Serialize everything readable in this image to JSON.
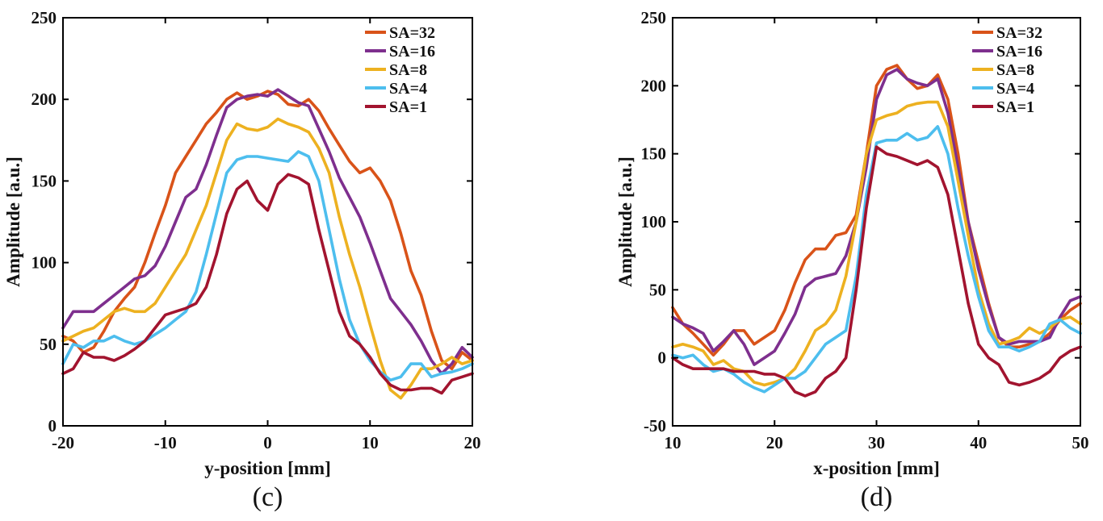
{
  "chart_data": [
    {
      "type": "line",
      "panel_label": "(c)",
      "xlabel": "y-position [mm]",
      "ylabel": "Amplitude [a.u.]",
      "xlim": [
        -20,
        20
      ],
      "ylim": [
        0,
        250
      ],
      "xticks": [
        -20,
        -10,
        0,
        10,
        20
      ],
      "yticks": [
        0,
        50,
        100,
        150,
        200,
        250
      ],
      "grid": false,
      "legend_position": "top-right",
      "series": [
        {
          "name": "SA=32",
          "color": "#D95319",
          "x": [
            -20,
            -19,
            -18,
            -17,
            -16,
            -15,
            -14,
            -13,
            -12,
            -11,
            -10,
            -9,
            -8,
            -7,
            -6,
            -5,
            -4,
            -3,
            -2,
            -1,
            0,
            1,
            2,
            3,
            4,
            5,
            6,
            7,
            8,
            9,
            10,
            11,
            12,
            13,
            14,
            15,
            16,
            17,
            18,
            19,
            20
          ],
          "y": [
            55,
            52,
            45,
            48,
            58,
            70,
            78,
            85,
            100,
            118,
            135,
            155,
            165,
            175,
            185,
            192,
            200,
            204,
            200,
            202,
            205,
            203,
            197,
            196,
            200,
            193,
            182,
            172,
            162,
            155,
            158,
            150,
            138,
            118,
            95,
            80,
            58,
            40,
            35,
            45,
            40
          ]
        },
        {
          "name": "SA=16",
          "color": "#7E2F8E",
          "x": [
            -20,
            -19,
            -18,
            -17,
            -16,
            -15,
            -14,
            -13,
            -12,
            -11,
            -10,
            -9,
            -8,
            -7,
            -6,
            -5,
            -4,
            -3,
            -2,
            -1,
            0,
            1,
            2,
            3,
            4,
            5,
            6,
            7,
            8,
            9,
            10,
            11,
            12,
            13,
            14,
            15,
            16,
            17,
            18,
            19,
            20
          ],
          "y": [
            60,
            70,
            70,
            70,
            75,
            80,
            85,
            90,
            92,
            98,
            110,
            125,
            140,
            145,
            160,
            178,
            195,
            200,
            202,
            203,
            202,
            206,
            202,
            198,
            196,
            182,
            168,
            152,
            140,
            128,
            112,
            95,
            78,
            70,
            62,
            52,
            40,
            32,
            38,
            48,
            42
          ]
        },
        {
          "name": "SA=8",
          "color": "#EDB120",
          "x": [
            -20,
            -19,
            -18,
            -17,
            -16,
            -15,
            -14,
            -13,
            -12,
            -11,
            -10,
            -9,
            -8,
            -7,
            -6,
            -5,
            -4,
            -3,
            -2,
            -1,
            0,
            1,
            2,
            3,
            4,
            5,
            6,
            7,
            8,
            9,
            10,
            11,
            12,
            13,
            14,
            15,
            16,
            17,
            18,
            19,
            20
          ],
          "y": [
            52,
            55,
            58,
            60,
            65,
            70,
            72,
            70,
            70,
            75,
            85,
            95,
            105,
            120,
            135,
            155,
            175,
            185,
            182,
            181,
            183,
            188,
            185,
            183,
            180,
            170,
            155,
            128,
            105,
            85,
            62,
            40,
            22,
            17,
            25,
            35,
            35,
            38,
            42,
            38,
            40
          ]
        },
        {
          "name": "SA=4",
          "color": "#4DBEEE",
          "x": [
            -20,
            -19,
            -18,
            -17,
            -16,
            -15,
            -14,
            -13,
            -12,
            -11,
            -10,
            -9,
            -8,
            -7,
            -6,
            -5,
            -4,
            -3,
            -2,
            -1,
            0,
            1,
            2,
            3,
            4,
            5,
            6,
            7,
            8,
            9,
            10,
            11,
            12,
            13,
            14,
            15,
            16,
            17,
            18,
            19,
            20
          ],
          "y": [
            38,
            50,
            48,
            52,
            52,
            55,
            52,
            50,
            52,
            56,
            60,
            65,
            70,
            82,
            105,
            130,
            155,
            163,
            165,
            165,
            164,
            163,
            162,
            168,
            165,
            150,
            120,
            90,
            65,
            50,
            40,
            33,
            28,
            30,
            38,
            38,
            30,
            32,
            33,
            35,
            38
          ]
        },
        {
          "name": "SA=1",
          "color": "#A2142F",
          "x": [
            -20,
            -19,
            -18,
            -17,
            -16,
            -15,
            -14,
            -13,
            -12,
            -11,
            -10,
            -9,
            -8,
            -7,
            -6,
            -5,
            -4,
            -3,
            -2,
            -1,
            0,
            1,
            2,
            3,
            4,
            5,
            6,
            7,
            8,
            9,
            10,
            11,
            12,
            13,
            14,
            15,
            16,
            17,
            18,
            19,
            20
          ],
          "y": [
            32,
            35,
            45,
            42,
            42,
            40,
            43,
            47,
            52,
            60,
            68,
            70,
            72,
            75,
            85,
            105,
            130,
            145,
            150,
            138,
            132,
            148,
            154,
            152,
            148,
            120,
            95,
            70,
            55,
            50,
            42,
            32,
            25,
            22,
            22,
            23,
            23,
            20,
            28,
            30,
            32
          ]
        }
      ]
    },
    {
      "type": "line",
      "panel_label": "(d)",
      "xlabel": "x-position [mm]",
      "ylabel": "Amplitude [a.u.]",
      "xlim": [
        10,
        50
      ],
      "ylim": [
        -50,
        250
      ],
      "xticks": [
        10,
        20,
        30,
        40,
        50
      ],
      "yticks": [
        -50,
        0,
        50,
        100,
        150,
        200,
        250
      ],
      "grid": false,
      "legend_position": "top-right",
      "series": [
        {
          "name": "SA=32",
          "color": "#D95319",
          "x": [
            10,
            11,
            12,
            13,
            14,
            15,
            16,
            17,
            18,
            19,
            20,
            21,
            22,
            23,
            24,
            25,
            26,
            27,
            28,
            29,
            30,
            31,
            32,
            33,
            34,
            35,
            36,
            37,
            38,
            39,
            40,
            41,
            42,
            43,
            44,
            45,
            46,
            47,
            48,
            49,
            50
          ],
          "y": [
            37,
            25,
            18,
            10,
            2,
            10,
            20,
            20,
            10,
            15,
            20,
            35,
            55,
            72,
            80,
            80,
            90,
            92,
            105,
            150,
            200,
            212,
            215,
            205,
            198,
            200,
            208,
            190,
            150,
            100,
            70,
            40,
            15,
            8,
            8,
            10,
            12,
            18,
            28,
            35,
            40
          ]
        },
        {
          "name": "SA=16",
          "color": "#7E2F8E",
          "x": [
            10,
            11,
            12,
            13,
            14,
            15,
            16,
            17,
            18,
            19,
            20,
            21,
            22,
            23,
            24,
            25,
            26,
            27,
            28,
            29,
            30,
            31,
            32,
            33,
            34,
            35,
            36,
            37,
            38,
            39,
            40,
            41,
            42,
            43,
            44,
            45,
            46,
            47,
            48,
            49,
            50
          ],
          "y": [
            30,
            25,
            22,
            18,
            5,
            12,
            20,
            10,
            -5,
            0,
            5,
            18,
            32,
            52,
            58,
            60,
            62,
            75,
            100,
            140,
            190,
            208,
            212,
            205,
            202,
            200,
            205,
            180,
            140,
            100,
            65,
            38,
            15,
            10,
            12,
            12,
            12,
            15,
            30,
            42,
            45
          ]
        },
        {
          "name": "SA=8",
          "color": "#EDB120",
          "x": [
            10,
            11,
            12,
            13,
            14,
            15,
            16,
            17,
            18,
            19,
            20,
            21,
            22,
            23,
            24,
            25,
            26,
            27,
            28,
            29,
            30,
            31,
            32,
            33,
            34,
            35,
            36,
            37,
            38,
            39,
            40,
            41,
            42,
            43,
            44,
            45,
            46,
            47,
            48,
            49,
            50
          ],
          "y": [
            8,
            10,
            8,
            5,
            -5,
            -2,
            -8,
            -10,
            -18,
            -20,
            -18,
            -15,
            -8,
            5,
            20,
            25,
            35,
            60,
            100,
            150,
            175,
            178,
            180,
            185,
            187,
            188,
            188,
            170,
            130,
            90,
            50,
            25,
            10,
            12,
            15,
            22,
            18,
            22,
            28,
            30,
            25
          ]
        },
        {
          "name": "SA=4",
          "color": "#4DBEEE",
          "x": [
            10,
            11,
            12,
            13,
            14,
            15,
            16,
            17,
            18,
            19,
            20,
            21,
            22,
            23,
            24,
            25,
            26,
            27,
            28,
            29,
            30,
            31,
            32,
            33,
            34,
            35,
            36,
            37,
            38,
            39,
            40,
            41,
            42,
            43,
            44,
            45,
            46,
            47,
            48,
            49,
            50
          ],
          "y": [
            2,
            0,
            2,
            -5,
            -10,
            -8,
            -12,
            -18,
            -22,
            -25,
            -20,
            -15,
            -15,
            -10,
            0,
            10,
            15,
            20,
            60,
            120,
            158,
            160,
            160,
            165,
            160,
            162,
            170,
            150,
            110,
            75,
            45,
            20,
            8,
            8,
            5,
            8,
            12,
            25,
            28,
            22,
            18
          ]
        },
        {
          "name": "SA=1",
          "color": "#A2142F",
          "x": [
            10,
            11,
            12,
            13,
            14,
            15,
            16,
            17,
            18,
            19,
            20,
            21,
            22,
            23,
            24,
            25,
            26,
            27,
            28,
            29,
            30,
            31,
            32,
            33,
            34,
            35,
            36,
            37,
            38,
            39,
            40,
            41,
            42,
            43,
            44,
            45,
            46,
            47,
            48,
            49,
            50
          ],
          "y": [
            0,
            -5,
            -8,
            -8,
            -8,
            -8,
            -10,
            -10,
            -10,
            -12,
            -12,
            -15,
            -25,
            -28,
            -25,
            -15,
            -10,
            0,
            50,
            110,
            155,
            150,
            148,
            145,
            142,
            145,
            140,
            120,
            80,
            40,
            10,
            0,
            -5,
            -18,
            -20,
            -18,
            -15,
            -10,
            0,
            5,
            8
          ]
        }
      ]
    }
  ]
}
